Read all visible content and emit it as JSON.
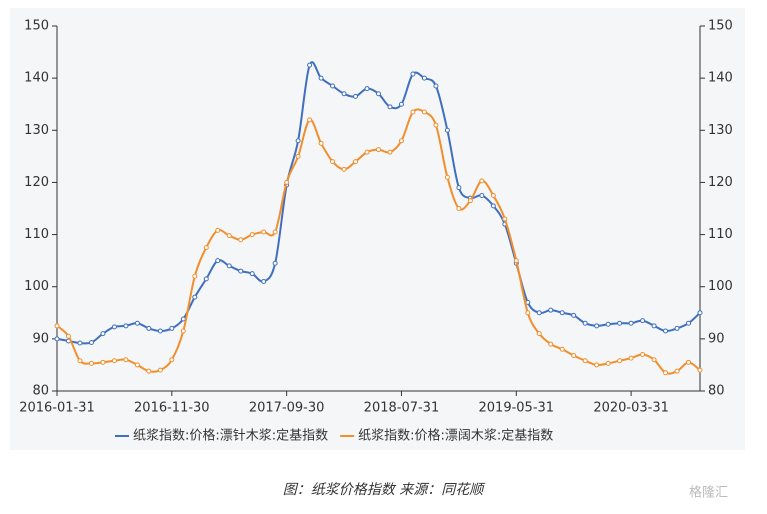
{
  "chart_data": {
    "type": "line",
    "categories": [
      "2016-01-31",
      null,
      null,
      null,
      null,
      null,
      null,
      null,
      null,
      null,
      "2016-11-30",
      null,
      null,
      null,
      null,
      null,
      null,
      null,
      null,
      null,
      "2017-09-30",
      null,
      null,
      null,
      null,
      null,
      null,
      null,
      null,
      null,
      "2018-07-31",
      null,
      null,
      null,
      null,
      null,
      null,
      null,
      null,
      null,
      "2019-05-31",
      null,
      null,
      null,
      null,
      null,
      null,
      null,
      null,
      null,
      "2020-03-31",
      null,
      null,
      null,
      null,
      null,
      null
    ],
    "series": [
      {
        "name": "纸浆指数:价格:漂针木浆:定基指数",
        "color": "#3f6fbf",
        "values": [
          90,
          89.6,
          89.2,
          89.3,
          91,
          92.3,
          92.5,
          93,
          92,
          91.5,
          92,
          93.8,
          98,
          101.5,
          105,
          104,
          103,
          102.5,
          101,
          104.5,
          119.5,
          128,
          142.5,
          140,
          138.5,
          137,
          136.5,
          138,
          137,
          134.5,
          135,
          140.8,
          140,
          138.5,
          130,
          119,
          117,
          117.5,
          115.5,
          112,
          104.5,
          97,
          95,
          95.5,
          95,
          94.5,
          93,
          92.5,
          92.8,
          93,
          93,
          93.5,
          92.5,
          91.5,
          92,
          93,
          95
        ]
      },
      {
        "name": "纸浆指数:价格:漂阔木浆:定基指数",
        "color": "#f28e2b",
        "values": [
          92.5,
          90.5,
          85.8,
          85.3,
          85.5,
          85.8,
          86,
          85,
          83.8,
          84,
          86,
          91.5,
          102,
          107.5,
          110.8,
          109.8,
          109,
          110,
          110.5,
          110.5,
          120,
          125,
          132,
          127.5,
          124,
          122.5,
          124,
          125.8,
          126.3,
          125.8,
          128,
          133.5,
          133.5,
          131,
          121,
          115,
          116.5,
          120.3,
          117.5,
          113,
          105,
          95,
          91,
          89,
          88,
          86.8,
          85.8,
          85,
          85.3,
          85.8,
          86.3,
          87,
          86,
          83.5,
          83.8,
          85.5,
          84
        ]
      }
    ],
    "ylim": [
      80,
      150
    ],
    "yticks": [
      80,
      90,
      100,
      110,
      120,
      130,
      140,
      150
    ],
    "y2lim": [
      80,
      150
    ],
    "y2ticks": [
      80,
      90,
      100,
      110,
      120,
      130,
      140,
      150
    ],
    "legend": "bottom"
  },
  "caption": "图：纸浆价格指数 来源：同花顺",
  "watermark": "格隆汇"
}
